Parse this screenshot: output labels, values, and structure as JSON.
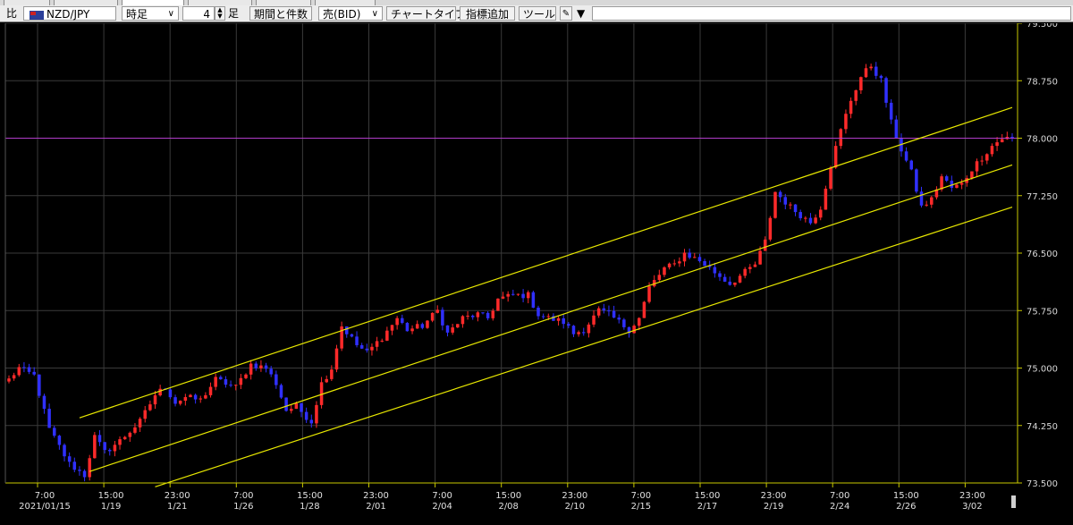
{
  "toolbar": {
    "compare_label": "比",
    "symbol": "NZD/JPY",
    "timeframe": "時足",
    "count": "4",
    "count_unit": "足",
    "period_button": "期間と件数",
    "side": "売(BID)",
    "chart_type_button": "チャートタイプ",
    "indicator_button": "指標追加",
    "tools_button": "ツール",
    "extra_button": "▼"
  },
  "chart_data": {
    "type": "candlestick",
    "instrument": "NZD/JPY",
    "timeframe": "4-hour",
    "price_axis": {
      "ylim": [
        73.5,
        79.5
      ],
      "ticks": [
        "79.500",
        "78.750",
        "78.000",
        "77.250",
        "76.500",
        "75.750",
        "75.000",
        "74.250",
        "73.500"
      ]
    },
    "time_axis": {
      "ticks": [
        {
          "time": "7:00",
          "date": "2021/01/15"
        },
        {
          "time": "15:00",
          "date": "1/19"
        },
        {
          "time": "23:00",
          "date": "1/21"
        },
        {
          "time": "7:00",
          "date": "1/26"
        },
        {
          "time": "15:00",
          "date": "1/28"
        },
        {
          "time": "23:00",
          "date": "2/01"
        },
        {
          "time": "7:00",
          "date": "2/04"
        },
        {
          "time": "15:00",
          "date": "2/08"
        },
        {
          "time": "23:00",
          "date": "2/10"
        },
        {
          "time": "7:00",
          "date": "2/15"
        },
        {
          "time": "15:00",
          "date": "2/17"
        },
        {
          "time": "23:00",
          "date": "2/19"
        },
        {
          "time": "7:00",
          "date": "2/24"
        },
        {
          "time": "15:00",
          "date": "2/26"
        },
        {
          "time": "23:00",
          "date": "3/02"
        }
      ]
    },
    "grid": true,
    "horizontal_line": 78.0,
    "close_path": [
      [
        0,
        74.85
      ],
      [
        2,
        75.0
      ],
      [
        5,
        74.9
      ],
      [
        8,
        74.2
      ],
      [
        12,
        73.75
      ],
      [
        15,
        73.6
      ],
      [
        17,
        74.1
      ],
      [
        19,
        73.9
      ],
      [
        22,
        74.05
      ],
      [
        26,
        74.3
      ],
      [
        29,
        74.65
      ],
      [
        31,
        74.75
      ],
      [
        33,
        74.55
      ],
      [
        35,
        74.62
      ],
      [
        38,
        74.58
      ],
      [
        41,
        74.85
      ],
      [
        45,
        74.75
      ],
      [
        48,
        75.05
      ],
      [
        51,
        75.0
      ],
      [
        53,
        74.8
      ],
      [
        55,
        74.45
      ],
      [
        57,
        74.5
      ],
      [
        60,
        74.3
      ],
      [
        62,
        74.8
      ],
      [
        64,
        75.0
      ],
      [
        66,
        75.55
      ],
      [
        69,
        75.3
      ],
      [
        71,
        75.2
      ],
      [
        74,
        75.4
      ],
      [
        77,
        75.65
      ],
      [
        79,
        75.5
      ],
      [
        82,
        75.55
      ],
      [
        85,
        75.75
      ],
      [
        87,
        75.45
      ],
      [
        90,
        75.65
      ],
      [
        93,
        75.7
      ],
      [
        95,
        75.65
      ],
      [
        97,
        75.9
      ],
      [
        100,
        75.95
      ],
      [
        103,
        75.95
      ],
      [
        105,
        75.7
      ],
      [
        107,
        75.65
      ],
      [
        110,
        75.6
      ],
      [
        112,
        75.45
      ],
      [
        114,
        75.5
      ],
      [
        117,
        75.75
      ],
      [
        119,
        75.7
      ],
      [
        121,
        75.6
      ],
      [
        123,
        75.5
      ],
      [
        125,
        75.65
      ],
      [
        127,
        76.05
      ],
      [
        130,
        76.3
      ],
      [
        132,
        76.35
      ],
      [
        134,
        76.5
      ],
      [
        137,
        76.4
      ],
      [
        139,
        76.3
      ],
      [
        141,
        76.2
      ],
      [
        143,
        76.1
      ],
      [
        146,
        76.25
      ],
      [
        148,
        76.35
      ],
      [
        150,
        76.65
      ],
      [
        152,
        77.3
      ],
      [
        155,
        77.1
      ],
      [
        157,
        77.0
      ],
      [
        159,
        76.9
      ],
      [
        161,
        77.1
      ],
      [
        163,
        77.65
      ],
      [
        165,
        78.1
      ],
      [
        167,
        78.5
      ],
      [
        169,
        78.8
      ],
      [
        171,
        78.95
      ],
      [
        173,
        78.75
      ],
      [
        175,
        78.2
      ],
      [
        177,
        77.85
      ],
      [
        179,
        77.55
      ],
      [
        181,
        77.1
      ],
      [
        183,
        77.2
      ],
      [
        185,
        77.5
      ],
      [
        187,
        77.35
      ],
      [
        189,
        77.4
      ],
      [
        191,
        77.6
      ],
      [
        193,
        77.75
      ],
      [
        195,
        77.9
      ],
      [
        197,
        78.0
      ]
    ],
    "channel_lines": [
      {
        "from": {
          "candle": 14,
          "price": 74.35
        },
        "to": {
          "candle": 199,
          "price": 78.4
        }
      },
      {
        "from": {
          "candle": 16,
          "price": 73.65
        },
        "to": {
          "candle": 199,
          "price": 77.65
        }
      },
      {
        "from": {
          "candle": 29,
          "price": 73.45
        },
        "to": {
          "candle": 199,
          "price": 77.1
        }
      }
    ],
    "colors": {
      "up": "#ff2a2a",
      "down": "#3030ff",
      "channel": "#e8e800",
      "level_line": "#b03cc8",
      "grid": "#3a3a3a",
      "axis": "#c8c800",
      "background": "#000000"
    }
  }
}
